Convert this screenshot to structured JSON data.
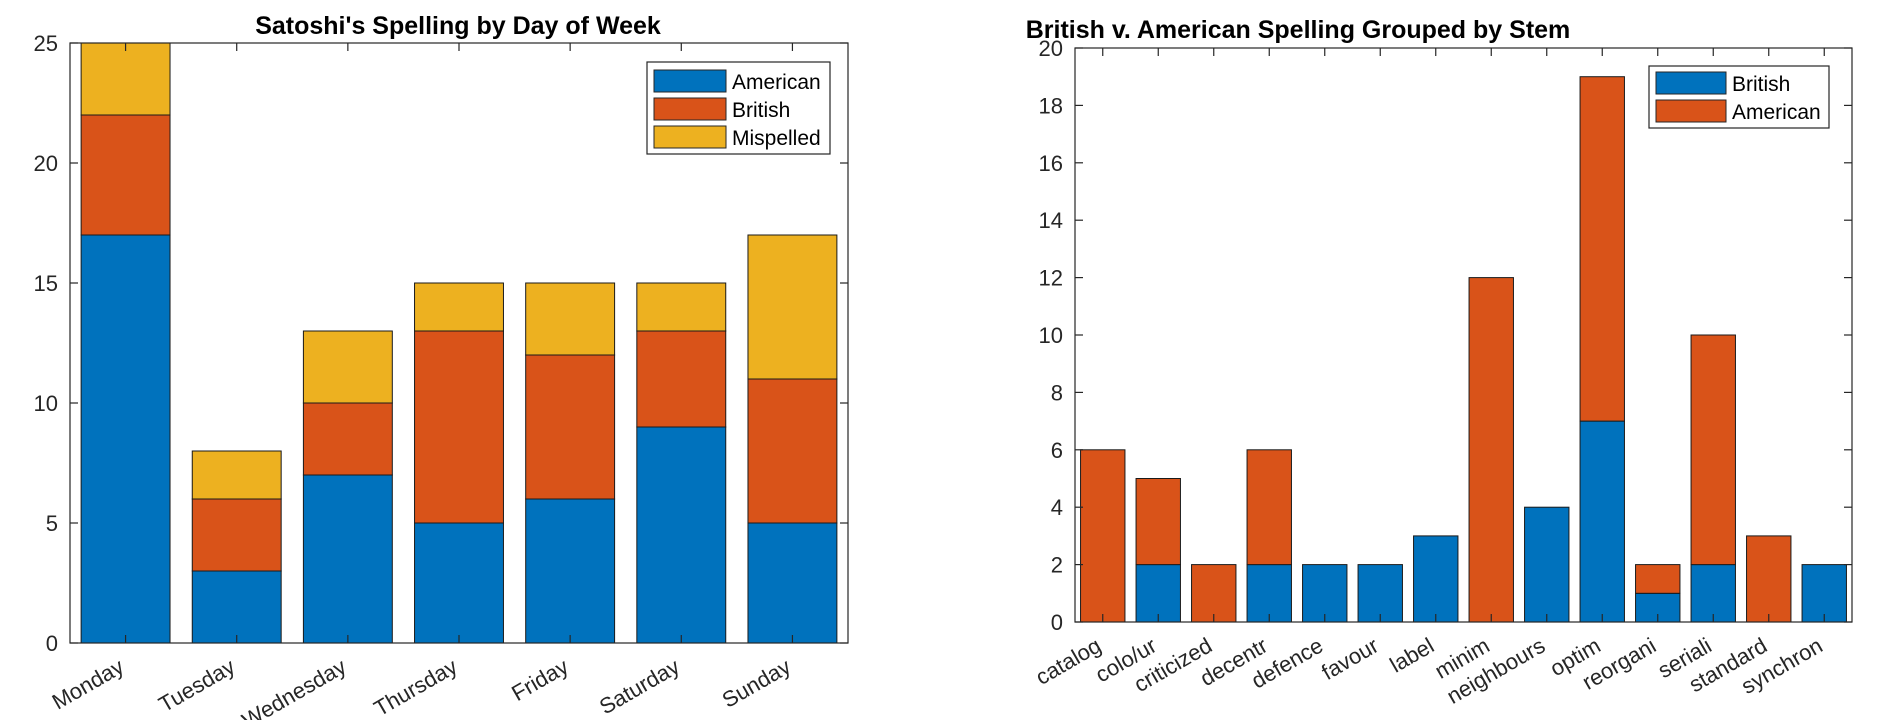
{
  "chart_data": [
    {
      "type": "bar",
      "stacked": true,
      "title": "Satoshi's Spelling by Day of Week",
      "xlabel": "",
      "ylabel": "",
      "categories": [
        "Monday",
        "Tuesday",
        "Wednesday",
        "Thursday",
        "Friday",
        "Saturday",
        "Sunday"
      ],
      "series": [
        {
          "name": "American",
          "color": "#0072BD",
          "values": [
            17,
            3,
            7,
            5,
            6,
            9,
            5
          ]
        },
        {
          "name": "British",
          "color": "#D95319",
          "values": [
            5,
            3,
            3,
            8,
            6,
            4,
            6
          ]
        },
        {
          "name": "Mispelled",
          "color": "#EDB120",
          "values": [
            3,
            2,
            3,
            2,
            3,
            2,
            6
          ]
        }
      ],
      "ylim": [
        0,
        25
      ],
      "yticks": [
        0,
        5,
        10,
        15,
        20,
        25
      ],
      "legend": "top-right",
      "grid": false
    },
    {
      "type": "bar",
      "stacked": true,
      "title": "British v. American Spelling Grouped by Stem",
      "xlabel": "",
      "ylabel": "",
      "categories": [
        "catalog",
        "colo/ur",
        "criticized",
        "decentr",
        "defence",
        "favour",
        "label",
        "minim",
        "neighbours",
        "optim",
        "reorgani",
        "seriali",
        "standard",
        "synchron"
      ],
      "series": [
        {
          "name": "British",
          "color": "#0072BD",
          "values": [
            0,
            2,
            0,
            2,
            2,
            2,
            3,
            0,
            4,
            7,
            1,
            2,
            0,
            2
          ]
        },
        {
          "name": "American",
          "color": "#D95319",
          "values": [
            6,
            3,
            2,
            4,
            0,
            0,
            0,
            12,
            0,
            12,
            1,
            8,
            3,
            0
          ]
        }
      ],
      "ylim": [
        0,
        20
      ],
      "yticks": [
        0,
        2,
        4,
        6,
        8,
        10,
        12,
        14,
        16,
        18,
        20
      ],
      "legend": "top-right",
      "grid": false
    }
  ]
}
